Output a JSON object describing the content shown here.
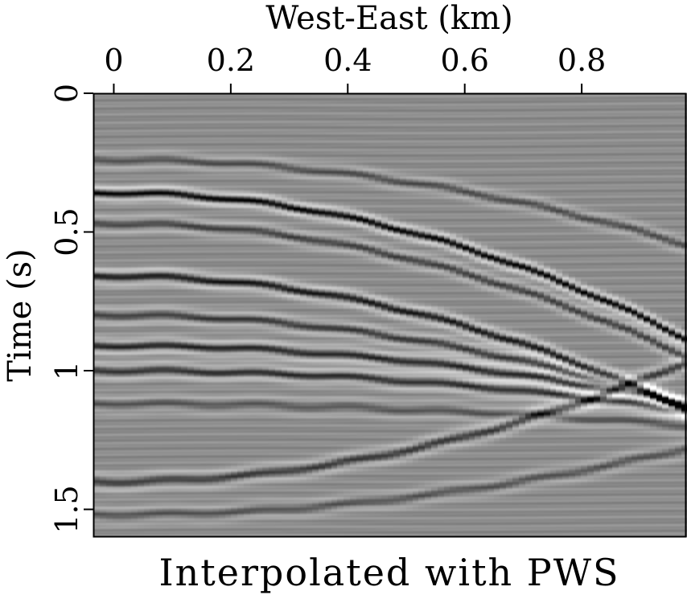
{
  "chart_data": {
    "type": "heatmap",
    "title": "Interpolated with PWS",
    "xlabel": "West-East (km)",
    "ylabel": "Time (s)",
    "xlim": [
      -0.035,
      0.98
    ],
    "ylim": [
      0,
      1.6
    ],
    "x_ticks": [
      0,
      0.2,
      0.4,
      0.6,
      0.8
    ],
    "x_tick_labels": [
      "0",
      "0.2",
      "0.4",
      "0.6",
      "0.8"
    ],
    "y_ticks": [
      0,
      0.5,
      1,
      1.5
    ],
    "y_tick_labels": [
      "0",
      "0.5",
      "1",
      "1.5"
    ],
    "colormap": "grayscale seismic (black = negative, white = positive)",
    "events": [
      {
        "t0": 0.24,
        "curv": 0.32,
        "amp": 0.45,
        "w": 0.02
      },
      {
        "t0": 0.36,
        "curv": 0.55,
        "amp": 1.0,
        "w": 0.018
      },
      {
        "t0": 0.47,
        "curv": 0.5,
        "amp": 0.55,
        "w": 0.02
      },
      {
        "t0": 0.66,
        "curv": 0.5,
        "amp": 0.85,
        "w": 0.02
      },
      {
        "t0": 0.8,
        "curv": 0.34,
        "amp": 0.6,
        "w": 0.02
      },
      {
        "t0": 0.91,
        "curv": 0.22,
        "amp": 0.75,
        "w": 0.02
      },
      {
        "t0": 1.0,
        "curv": 0.15,
        "amp": 0.7,
        "w": 0.02
      },
      {
        "t0": 1.12,
        "curv": 0.08,
        "amp": 0.4,
        "w": 0.022
      },
      {
        "t0": 1.4,
        "curv": -0.45,
        "amp": 0.6,
        "w": 0.022
      },
      {
        "t0": 1.52,
        "curv": -0.25,
        "amp": 0.4,
        "w": 0.022
      }
    ]
  }
}
